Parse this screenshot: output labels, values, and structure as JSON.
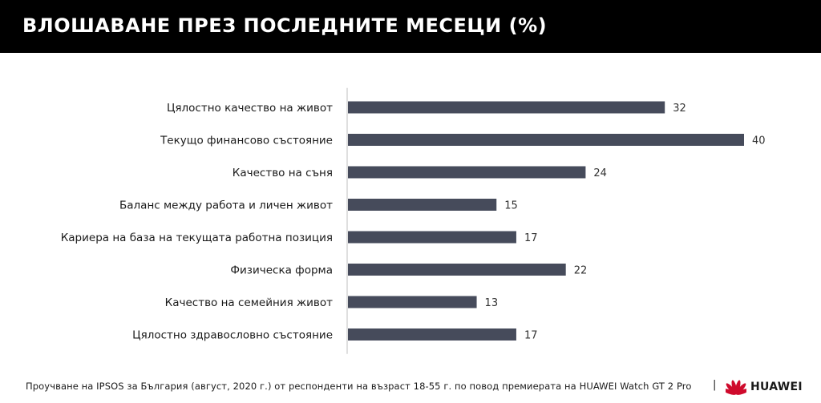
{
  "header": {
    "title": "ВЛОШАВАНЕ ПРЕЗ ПОСЛЕДНИТЕ МЕСЕЦИ (%)"
  },
  "chart_data": {
    "type": "bar",
    "orientation": "horizontal",
    "title": "",
    "categories": [
      "Цялостно качество на живот",
      "Текущо финансово състояние",
      "Качество на съня",
      "Баланс между работа и личен живот",
      "Кариера на база на текущата работна позиция",
      "Физическа форма",
      "Качество на семейния живот",
      "Цялостно здравословно състояние"
    ],
    "values": [
      32,
      40,
      24,
      15,
      17,
      22,
      13,
      17
    ],
    "xlim": [
      0,
      40
    ],
    "grid": false,
    "bar_color": "#464b5b",
    "axis_color": "#bfbfbf"
  },
  "footer": {
    "note": "Проучване на IPSOS за България (август, 2020 г.) от респонденти на възраст 18-55 г. по повод премиерата на HUAWEI Watch GT 2 Pro",
    "separator": "|",
    "brand": "HUAWEI",
    "brand_icon": "huawei-logo-icon",
    "brand_color": "#cf0a2c"
  }
}
